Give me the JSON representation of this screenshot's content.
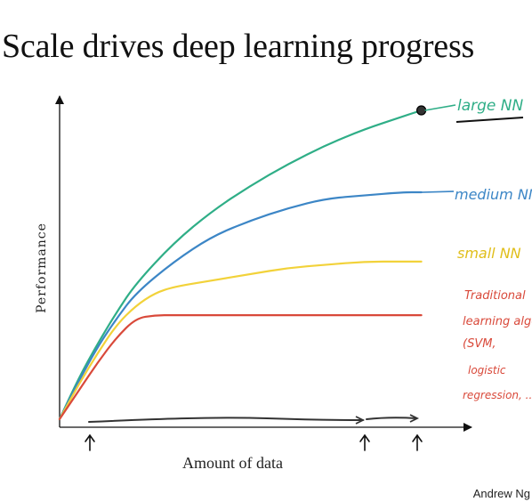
{
  "slide": {
    "title": "Scale drives deep learning progress",
    "footer": "Andrew Ng"
  },
  "chart_data": {
    "type": "line",
    "xlabel": "Amount of data",
    "ylabel": "Performance",
    "xlim": [
      0,
      100
    ],
    "ylim": [
      0,
      100
    ],
    "grid": false,
    "series": [
      {
        "name": "large NN",
        "color": "#2fae87",
        "x": [
          0,
          5,
          10,
          15,
          20,
          30,
          40,
          50,
          60,
          70,
          80,
          90,
          95
        ],
        "values": [
          2,
          15,
          26,
          36,
          45,
          58,
          68,
          76,
          83,
          89,
          94,
          98,
          100
        ]
      },
      {
        "name": "medium NN",
        "color": "#3c86c6",
        "x": [
          0,
          5,
          10,
          15,
          20,
          30,
          40,
          50,
          60,
          70,
          80,
          90,
          95
        ],
        "values": [
          2,
          14,
          25,
          34,
          42,
          52,
          60,
          65,
          69,
          72,
          73,
          74,
          74
        ]
      },
      {
        "name": "small NN",
        "color": "#f2d23a",
        "x": [
          0,
          5,
          10,
          15,
          20,
          25,
          30,
          40,
          50,
          60,
          70,
          80,
          90,
          95
        ],
        "values": [
          2,
          13,
          23,
          32,
          38,
          42,
          44,
          46,
          48,
          50,
          51,
          52,
          52,
          52
        ]
      },
      {
        "name": "Traditional learning algo (SVM, logistic regression, ...)",
        "color": "#d9493a",
        "x": [
          0,
          5,
          10,
          15,
          20,
          25,
          30,
          40,
          50,
          60,
          70,
          80,
          90,
          95
        ],
        "values": [
          2,
          11,
          20,
          28,
          34,
          35,
          35,
          35,
          35,
          35,
          35,
          35,
          35,
          35
        ]
      }
    ],
    "annotations": [
      {
        "text": "large NN",
        "color": "#2fae87"
      },
      {
        "text": "medium NN",
        "color": "#3c86c6"
      },
      {
        "text": "small NN",
        "color": "#e0be1a"
      },
      {
        "text": "Traditional",
        "color": "#d9493a"
      },
      {
        "text": "learning algo",
        "color": "#d9493a"
      },
      {
        "text": "(SVM,",
        "color": "#d9493a"
      },
      {
        "text": "logistic",
        "color": "#d9493a"
      },
      {
        "text": "regression, ...)",
        "color": "#d9493a"
      }
    ],
    "data_regime_marks": 3
  }
}
